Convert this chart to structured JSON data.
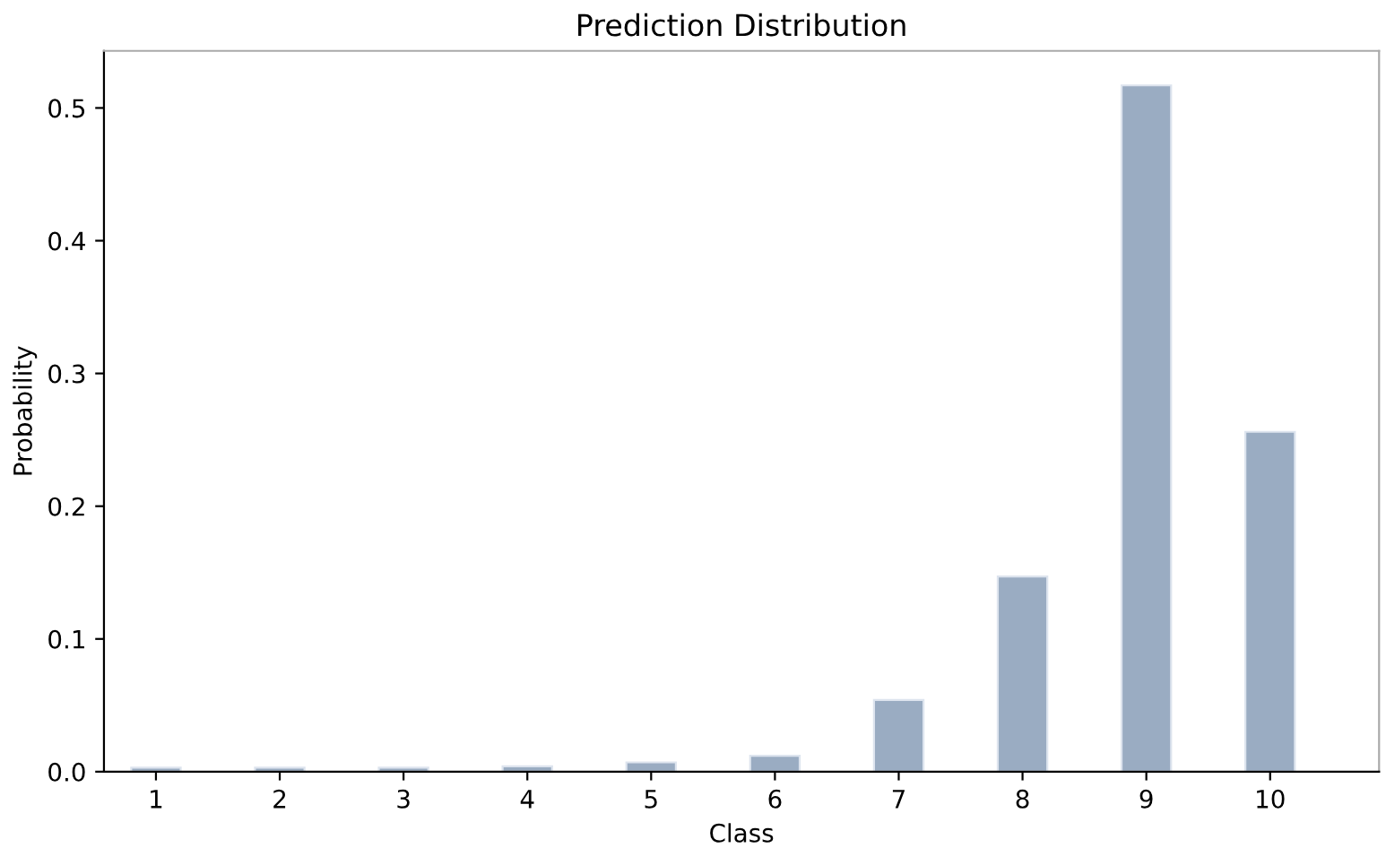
{
  "chart_data": {
    "type": "bar",
    "title": "Prediction Distribution",
    "xlabel": "Class",
    "ylabel": "Probability",
    "x": [
      1,
      2,
      3,
      4,
      5,
      6,
      7,
      8,
      9,
      10
    ],
    "values": [
      0.003,
      0.003,
      0.003,
      0.004,
      0.007,
      0.012,
      0.054,
      0.147,
      0.517,
      0.256
    ],
    "color": "#9aacc2",
    "xlim": [
      0.58,
      10.88
    ],
    "xticks": [
      1,
      2,
      3,
      4,
      5,
      6,
      7,
      8,
      9,
      10
    ],
    "ylim": [
      0,
      0.543
    ],
    "yticks": [
      {
        "value": 0,
        "label": "0.0"
      },
      0.1,
      0.2,
      0.3,
      0.4,
      0.5
    ],
    "grid": false
  }
}
